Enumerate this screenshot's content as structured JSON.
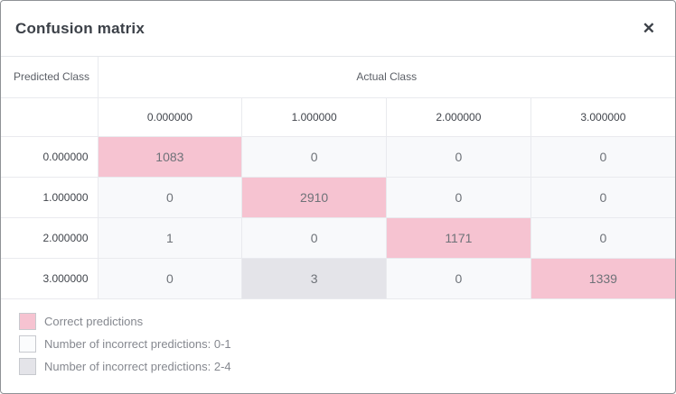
{
  "modal": {
    "title": "Confusion matrix",
    "close_icon": "✕"
  },
  "matrix": {
    "row_axis_label": "Predicted Class",
    "col_axis_label": "Actual Class",
    "col_headers": [
      "0.000000",
      "1.000000",
      "2.000000",
      "3.000000"
    ],
    "rows": [
      {
        "header": "0.000000",
        "cells": [
          {
            "value": "1083",
            "type": "correct"
          },
          {
            "value": "0",
            "type": "low"
          },
          {
            "value": "0",
            "type": "low"
          },
          {
            "value": "0",
            "type": "low"
          }
        ]
      },
      {
        "header": "1.000000",
        "cells": [
          {
            "value": "0",
            "type": "low"
          },
          {
            "value": "2910",
            "type": "correct"
          },
          {
            "value": "0",
            "type": "low"
          },
          {
            "value": "0",
            "type": "low"
          }
        ]
      },
      {
        "header": "2.000000",
        "cells": [
          {
            "value": "1",
            "type": "low"
          },
          {
            "value": "0",
            "type": "low"
          },
          {
            "value": "1171",
            "type": "correct"
          },
          {
            "value": "0",
            "type": "low"
          }
        ]
      },
      {
        "header": "3.000000",
        "cells": [
          {
            "value": "0",
            "type": "low"
          },
          {
            "value": "3",
            "type": "mid"
          },
          {
            "value": "0",
            "type": "low"
          },
          {
            "value": "1339",
            "type": "correct"
          }
        ]
      }
    ]
  },
  "legend": {
    "items": [
      {
        "label": "Correct predictions",
        "color": "#f6c3d1",
        "type": "correct"
      },
      {
        "label": "Number of incorrect predictions: 0-1",
        "color": "#fbfcfd",
        "type": "low"
      },
      {
        "label": "Number of incorrect predictions: 2-4",
        "color": "#e4e4e9",
        "type": "mid"
      }
    ]
  },
  "colors": {
    "correct": "#f6c3d1",
    "incorrect_low": "#f8f9fb",
    "incorrect_mid": "#e4e4e9",
    "border": "#e9eaee",
    "title_text": "#3c4148"
  }
}
